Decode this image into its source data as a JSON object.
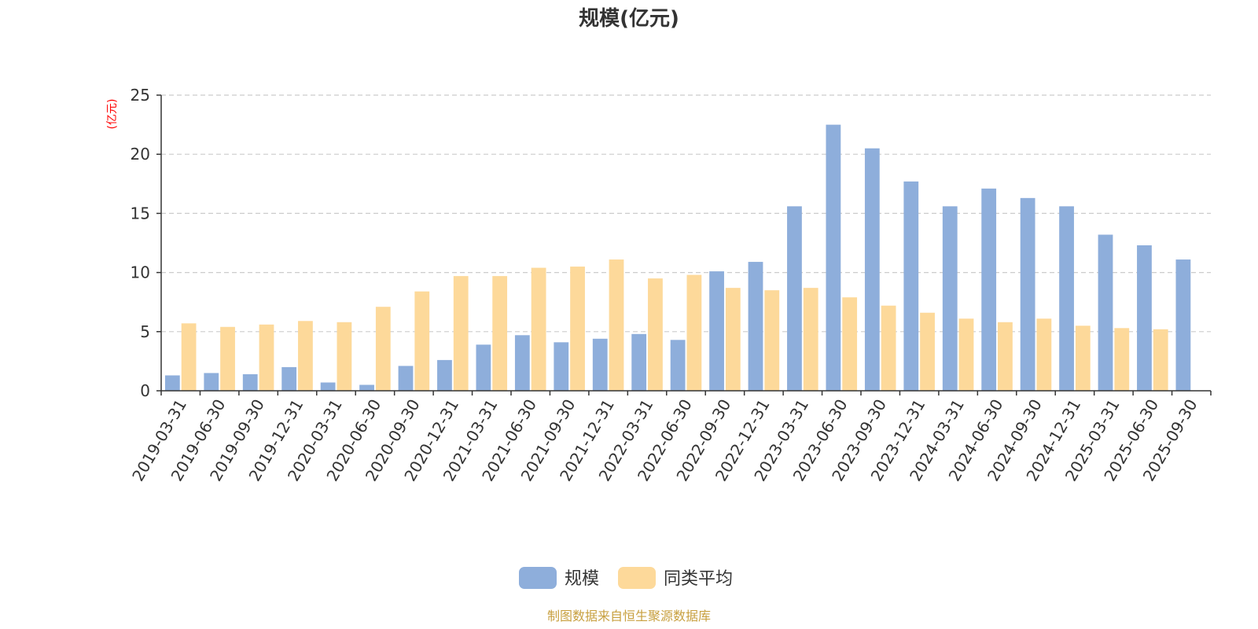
{
  "chart_data": {
    "type": "bar",
    "title": "规模(亿元)",
    "y_unit_label": "(亿元)",
    "ylim": [
      0,
      25
    ],
    "yticks": [
      0,
      5,
      10,
      15,
      20,
      25
    ],
    "grid": true,
    "legend_position": "bottom-center",
    "categories": [
      "2019-03-31",
      "2019-06-30",
      "2019-09-30",
      "2019-12-31",
      "2020-03-31",
      "2020-06-30",
      "2020-09-30",
      "2020-12-31",
      "2021-03-31",
      "2021-06-30",
      "2021-09-30",
      "2021-12-31",
      "2022-03-31",
      "2022-06-30",
      "2022-09-30",
      "2022-12-31",
      "2023-03-31",
      "2023-06-30",
      "2023-09-30",
      "2023-12-31",
      "2024-03-31",
      "2024-06-30",
      "2024-09-30",
      "2024-12-31",
      "2025-03-31",
      "2025-06-30",
      "2025-09-30"
    ],
    "series": [
      {
        "name": "规模",
        "color": "#8eaedb",
        "values": [
          1.3,
          1.5,
          1.4,
          2.0,
          0.7,
          0.5,
          2.1,
          2.6,
          3.9,
          4.7,
          4.1,
          4.4,
          4.8,
          4.3,
          10.1,
          10.9,
          15.6,
          22.5,
          20.5,
          17.7,
          15.6,
          17.1,
          16.3,
          15.6,
          13.2,
          12.3,
          11.1
        ]
      },
      {
        "name": "同类平均",
        "color": "#fdd99a",
        "values": [
          5.7,
          5.4,
          5.6,
          5.9,
          5.8,
          7.1,
          8.4,
          9.7,
          9.7,
          10.4,
          10.5,
          11.1,
          9.5,
          9.8,
          8.7,
          8.5,
          8.7,
          7.9,
          7.2,
          6.6,
          6.1,
          5.8,
          6.1,
          5.5,
          5.3,
          5.2,
          null
        ]
      }
    ]
  },
  "source_text": "制图数据来自恒生聚源数据库"
}
